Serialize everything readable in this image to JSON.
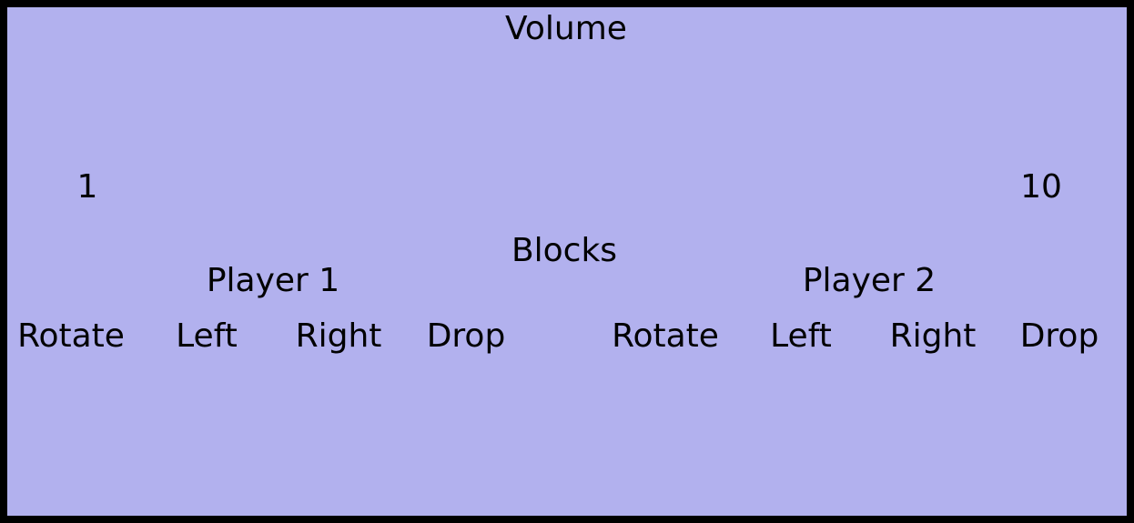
{
  "colors": {
    "frame": "#000000",
    "panel_background": "#b2b1ee",
    "text": "#000000"
  },
  "volume": {
    "title": "Volume",
    "min_label": "1",
    "max_label": "10"
  },
  "blocks": {
    "title": "Blocks"
  },
  "player1": {
    "title": "Player 1",
    "controls": [
      "Rotate",
      "Left",
      "Right",
      "Drop"
    ]
  },
  "player2": {
    "title": "Player 2",
    "controls": [
      "Rotate",
      "Left",
      "Right",
      "Drop"
    ]
  }
}
